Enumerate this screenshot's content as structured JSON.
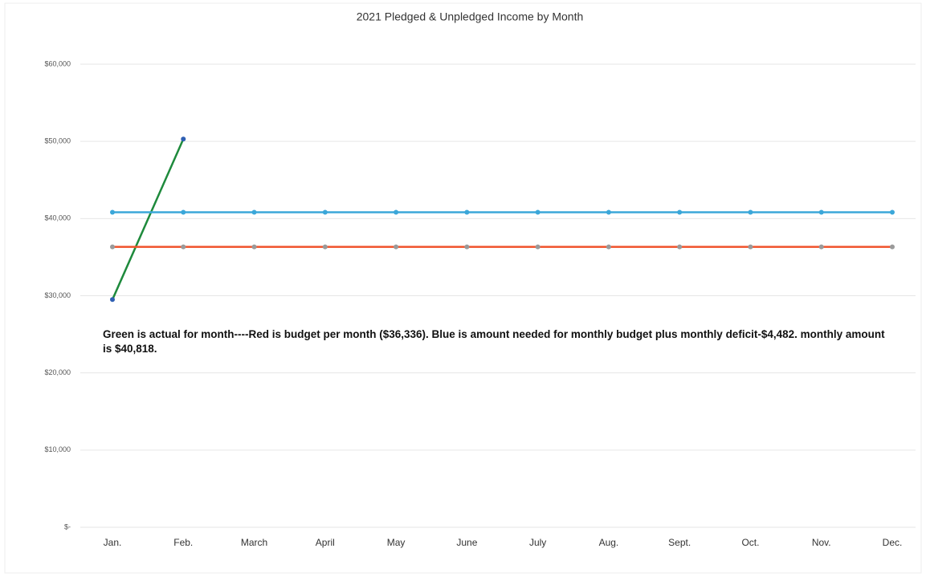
{
  "chart_data": {
    "type": "line",
    "title": "2021 Pledged & Unpledged Income by Month",
    "annotation": "Green is actual for month----Red is budget per month ($36,336). Blue is amount needed for monthly budget plus monthly deficit-$4,482. monthly amount is $40,818.",
    "categories": [
      "Jan.",
      "Feb.",
      "March",
      "April",
      "May",
      "June",
      "July",
      "Aug.",
      "Sept.",
      "Oct.",
      "Nov.",
      "Dec."
    ],
    "series": [
      {
        "color": "#1e8a3c",
        "marker_color": "#2f5fb3",
        "values": [
          29500,
          50300,
          null,
          null,
          null,
          null,
          null,
          null,
          null,
          null,
          null,
          null
        ]
      },
      {
        "color": "#3ba7d9",
        "marker_color": "#3ba7d9",
        "values": [
          40818,
          40818,
          40818,
          40818,
          40818,
          40818,
          40818,
          40818,
          40818,
          40818,
          40818,
          40818
        ]
      },
      {
        "color": "#f0522a",
        "marker_color": "#9a9a9a",
        "values": [
          36336,
          36336,
          36336,
          36336,
          36336,
          36336,
          36336,
          36336,
          36336,
          36336,
          36336,
          36336
        ]
      }
    ],
    "ylim": [
      0,
      60000
    ],
    "yticks": [
      {
        "value": 0,
        "label": "$-"
      },
      {
        "value": 10000,
        "label": "$10,000"
      },
      {
        "value": 20000,
        "label": "$20,000"
      },
      {
        "value": 30000,
        "label": "$30,000"
      },
      {
        "value": 40000,
        "label": "$40,000"
      },
      {
        "value": 50000,
        "label": "$50,000"
      },
      {
        "value": 60000,
        "label": "$60,000"
      }
    ],
    "grid": true
  }
}
